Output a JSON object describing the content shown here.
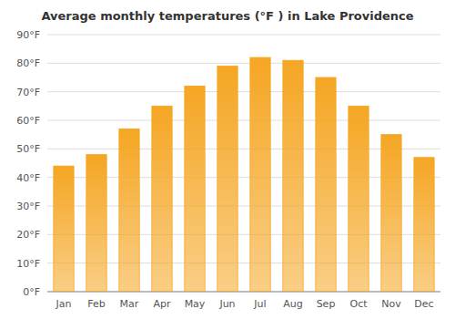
{
  "chart_data": {
    "type": "bar",
    "title": "Average monthly temperatures (°F ) in Lake Providence",
    "categories": [
      "Jan",
      "Feb",
      "Mar",
      "Apr",
      "May",
      "Jun",
      "Jul",
      "Aug",
      "Sep",
      "Oct",
      "Nov",
      "Dec"
    ],
    "values": [
      44,
      48,
      57,
      65,
      72,
      79,
      82,
      81,
      75,
      65,
      55,
      47
    ],
    "color": "#F5A623",
    "ylim": [
      0,
      90
    ],
    "yticks": [
      {
        "value": 0,
        "label": "0°F"
      },
      {
        "value": 10,
        "label": "10°F"
      },
      {
        "value": 20,
        "label": "20°F"
      },
      {
        "value": 30,
        "label": "30°F"
      },
      {
        "value": 40,
        "label": "40°F"
      },
      {
        "value": 50,
        "label": "50°F"
      },
      {
        "value": 60,
        "label": "60°F"
      },
      {
        "value": 70,
        "label": "70°F"
      },
      {
        "value": 80,
        "label": "80°F"
      },
      {
        "value": 90,
        "label": "90°F"
      }
    ],
    "grid": true
  }
}
